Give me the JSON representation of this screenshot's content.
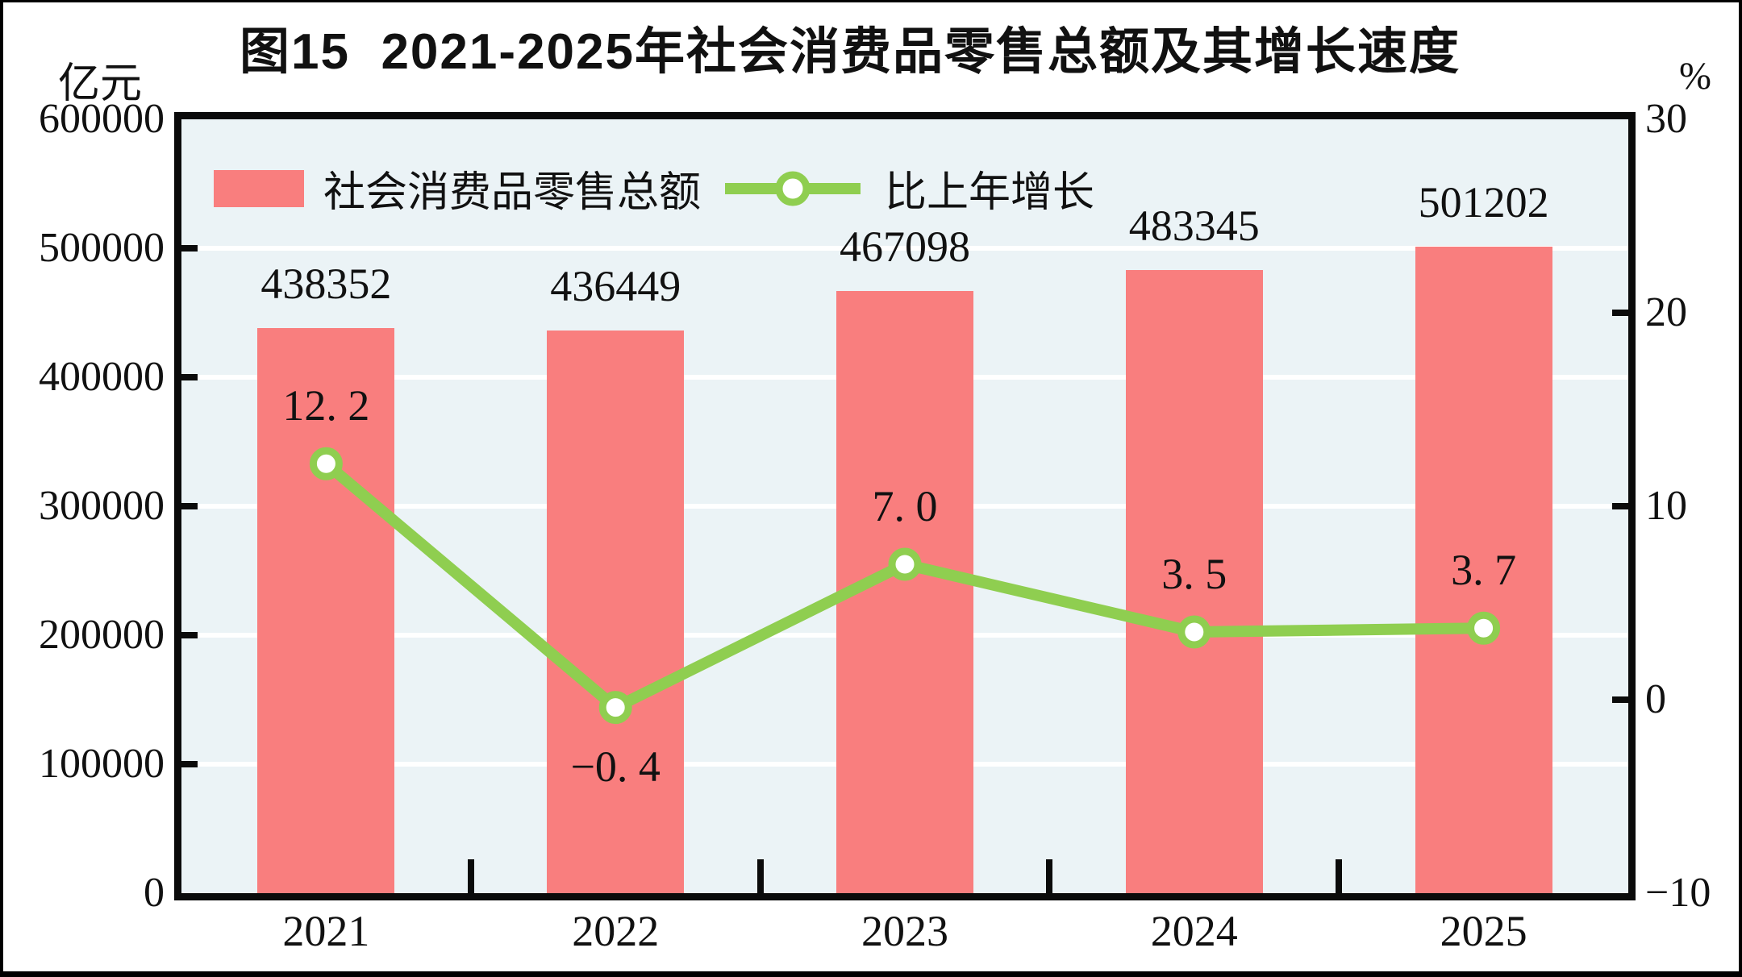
{
  "chart_data": {
    "type": "bar+line combo",
    "title": "图15  2021-2025年社会消费品零售总额及其增长速度",
    "categories": [
      "2021",
      "2022",
      "2023",
      "2024",
      "2025"
    ],
    "series": [
      {
        "name": "社会消费品零售总额",
        "type": "bar",
        "axis": "left",
        "values": [
          438352,
          436449,
          467098,
          483345,
          501202
        ],
        "labels": [
          "438352",
          "436449",
          "467098",
          "483345",
          "501202"
        ],
        "color": "#F97E7E"
      },
      {
        "name": "比上年增长",
        "type": "line",
        "axis": "right",
        "values": [
          12.2,
          -0.4,
          7.0,
          3.5,
          3.7
        ],
        "labels": [
          "12. 2",
          "−0. 4",
          "7. 0",
          "3. 5",
          "3. 7"
        ],
        "label_below": [
          false,
          true,
          false,
          false,
          false
        ],
        "color": "#8FCE50",
        "marker": "circle-white-fill-green-ring"
      }
    ],
    "left_axis": {
      "label": "亿元",
      "min": 0,
      "max": 600000,
      "tick_step": 100000,
      "ticks": [
        "0",
        "100000",
        "200000",
        "300000",
        "400000",
        "500000",
        "600000"
      ]
    },
    "right_axis": {
      "label": "%",
      "min": -10,
      "max": 30,
      "tick_step": 10,
      "ticks": [
        "−10",
        "0",
        "10",
        "20",
        "30"
      ]
    },
    "legend_position": "top-left-inside-plot",
    "grid": "horizontal-white-lines",
    "colors": {
      "plot_background": "#EBF3F6",
      "gridline": "#FFFFFF",
      "axis": "#0B0B0B",
      "text": "#111111",
      "frame_border": "#000000",
      "page_background": "#FFFFFF"
    }
  }
}
